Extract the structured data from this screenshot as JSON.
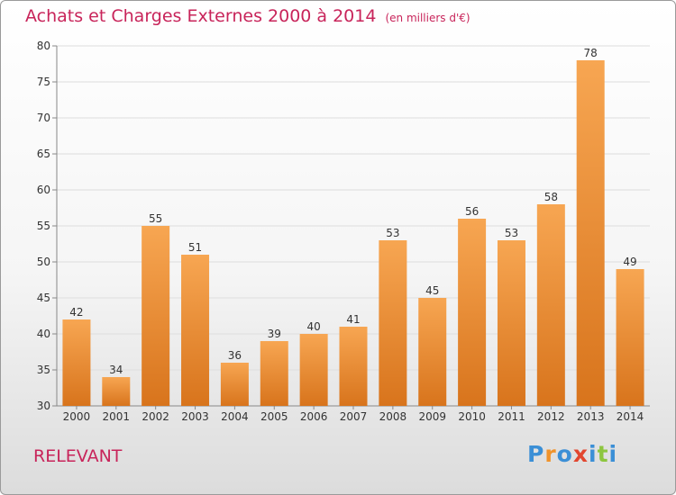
{
  "title": "Achats et Charges Externes 2000 à 2014",
  "unit_note": "(en milliers d'€)",
  "city": "RELEVANT",
  "logo": {
    "letters": [
      "P",
      "r",
      "o",
      "x",
      "i",
      "t",
      "i"
    ],
    "colors": [
      "#3b8fd6",
      "#f0932b",
      "#3b8fd6",
      "#e2462f",
      "#3b8fd6",
      "#8dc63f",
      "#3b8fd6"
    ]
  },
  "colors": {
    "title": "#c8245a",
    "bar_top": "#f7a652",
    "bar_bottom": "#d8741c"
  },
  "chart_data": {
    "type": "bar",
    "categories": [
      "2000",
      "2001",
      "2002",
      "2003",
      "2004",
      "2005",
      "2006",
      "2007",
      "2008",
      "2009",
      "2010",
      "2011",
      "2012",
      "2013",
      "2014"
    ],
    "values": [
      42,
      34,
      55,
      51,
      36,
      39,
      40,
      41,
      53,
      45,
      56,
      53,
      58,
      78,
      49
    ],
    "ylim": [
      30,
      80
    ],
    "yticks": [
      30,
      35,
      40,
      45,
      50,
      55,
      60,
      65,
      70,
      75,
      80
    ],
    "grid": true
  }
}
